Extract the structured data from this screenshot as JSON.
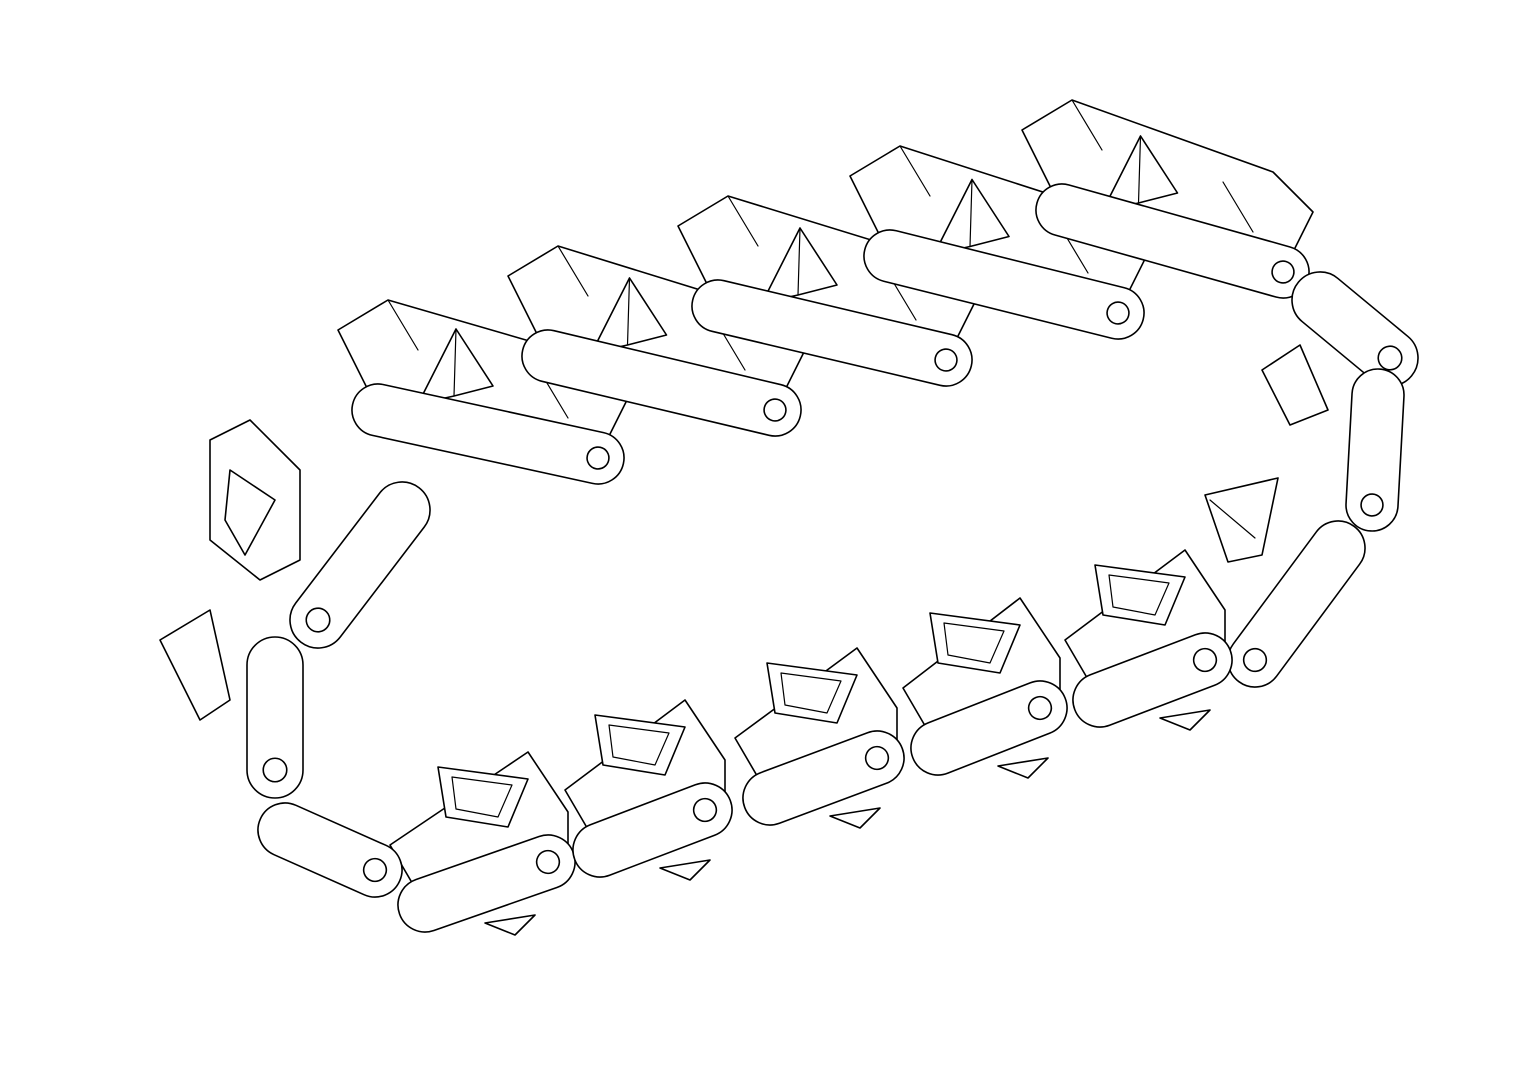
{
  "figure": {
    "type": "line-drawing",
    "subject": "tread-track-chain",
    "background_color": "#ffffff",
    "line_color": "#000000"
  }
}
